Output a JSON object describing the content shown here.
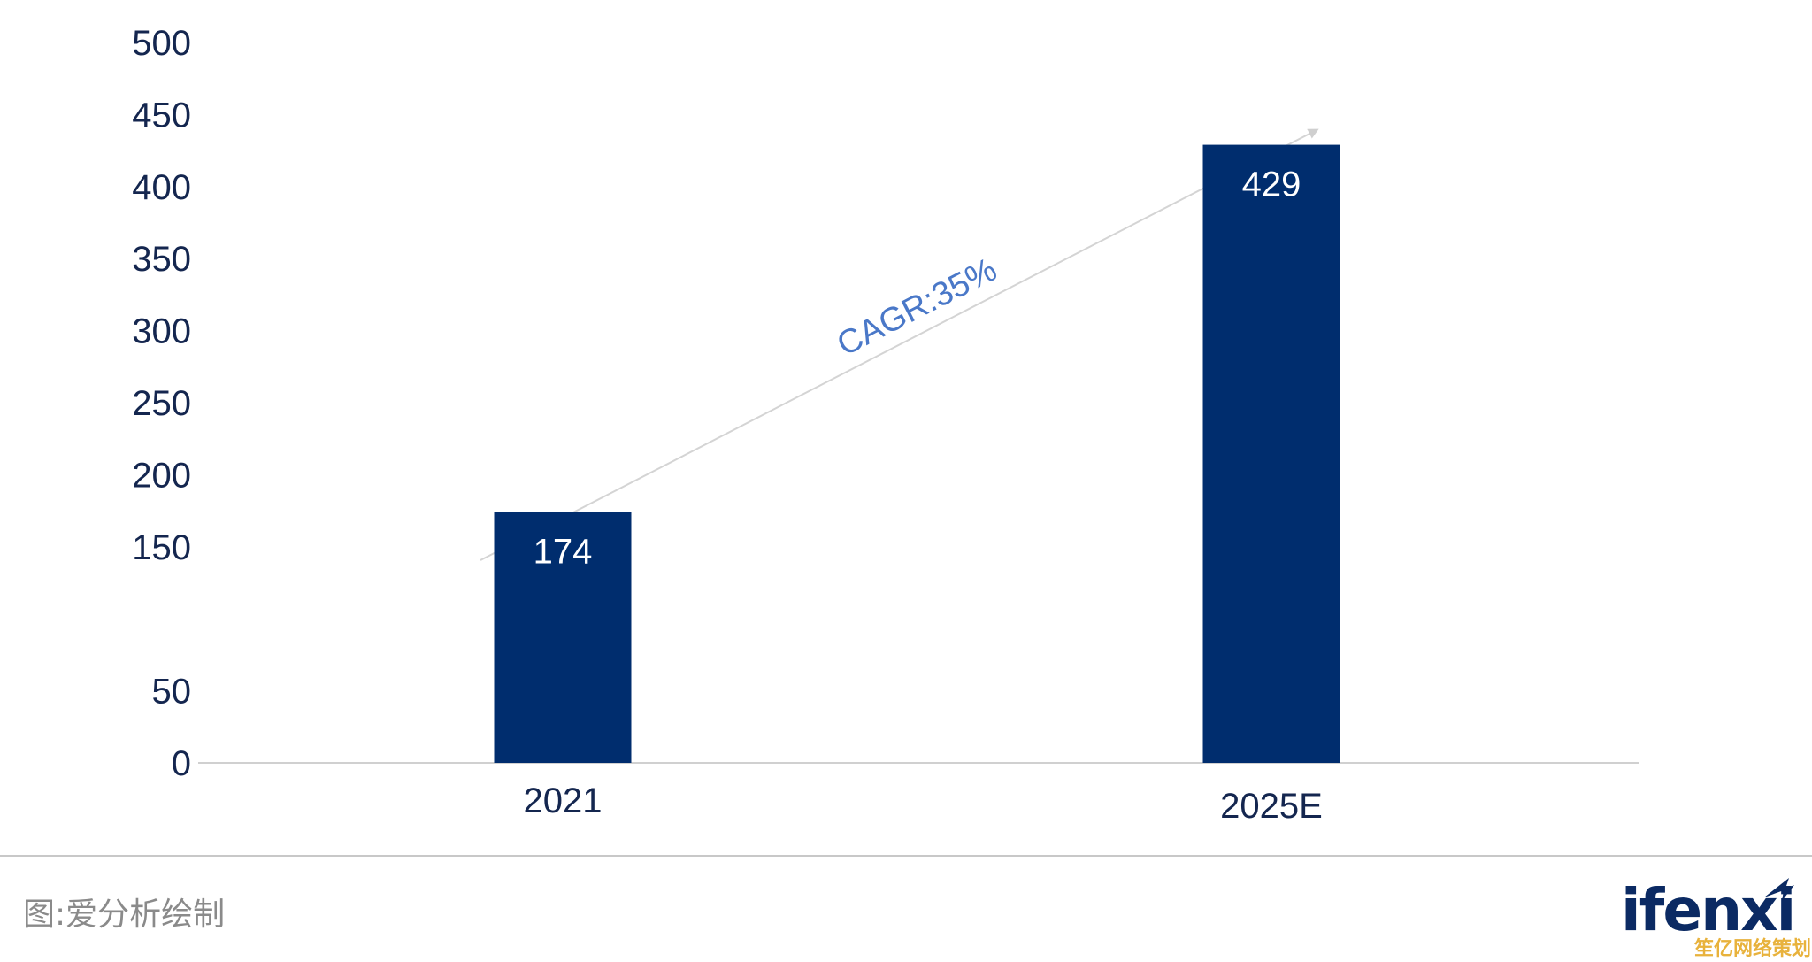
{
  "chart_data": {
    "type": "bar",
    "categories": [
      "2021",
      "2025E"
    ],
    "values": [
      174,
      429
    ],
    "y_tick_labels": [
      "0",
      "50",
      "150",
      "200",
      "250",
      "300",
      "350",
      "400",
      "450",
      "500"
    ],
    "ylim": [
      0,
      500
    ],
    "grid": false,
    "legend": "none",
    "bar_color": "#002d6e",
    "annotation": "CAGR:35%",
    "annotation_color": "#4a78c8"
  },
  "footer": {
    "source": "图:爱分析绘制",
    "logo": "ifenxi",
    "watermark": "笙亿网络策划"
  },
  "colors": {
    "axis_text": "#14264f",
    "axis_line": "#d0d0d0",
    "arrow": "#d4d4d4",
    "bar_label": "#ffffff"
  }
}
